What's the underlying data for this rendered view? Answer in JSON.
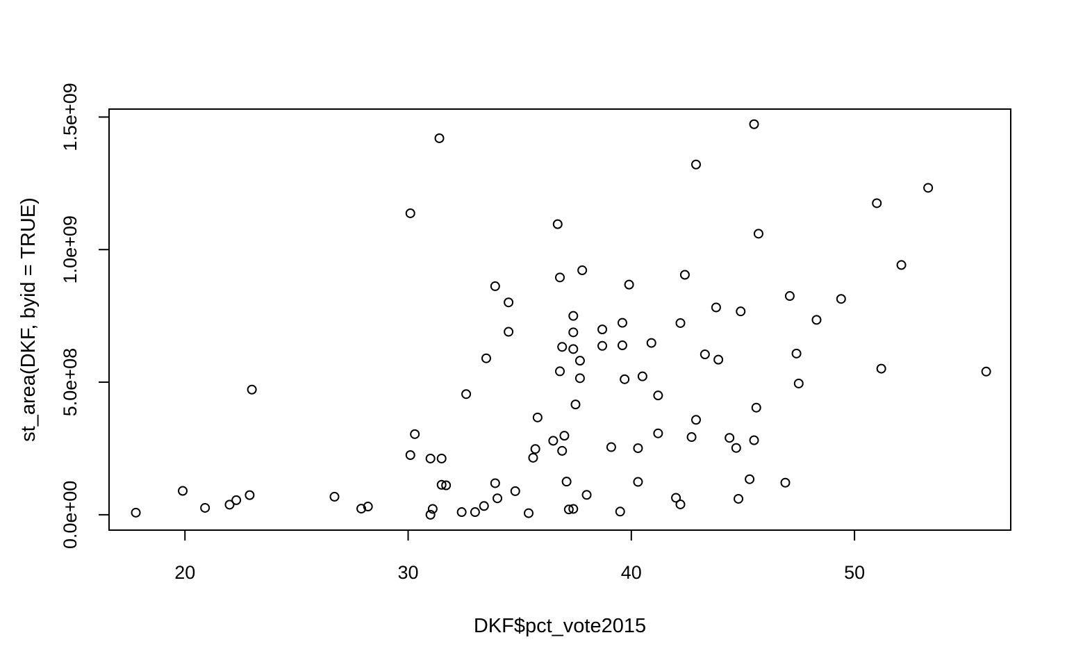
{
  "chart_data": {
    "type": "scatter",
    "xlabel": "DKF$pct_vote2015",
    "ylabel": "st_area(DKF, byid = TRUE)",
    "xlim": [
      16.6,
      57.0
    ],
    "ylim": [
      -58000000.0,
      1530000000.0
    ],
    "x_ticks": [
      {
        "value": 20,
        "label": "20"
      },
      {
        "value": 30,
        "label": "30"
      },
      {
        "value": 40,
        "label": "40"
      },
      {
        "value": 50,
        "label": "50"
      }
    ],
    "y_ticks": [
      {
        "value": 0,
        "label": "0.0e+00"
      },
      {
        "value": 500000000,
        "label": "5.0e+08"
      },
      {
        "value": 1000000000,
        "label": "1.0e+09"
      },
      {
        "value": 1500000000,
        "label": "1.5e+09"
      }
    ],
    "marker": "open-circle",
    "marker_color": "#000000",
    "grid": false,
    "legend": "none",
    "points": [
      [
        17.8,
        8000000
      ],
      [
        19.9,
        90000000
      ],
      [
        20.9,
        26000000
      ],
      [
        22.0,
        38000000
      ],
      [
        22.3,
        55000000
      ],
      [
        22.9,
        74000000
      ],
      [
        23.0,
        472000000
      ],
      [
        26.7,
        68000000
      ],
      [
        27.9,
        23000000
      ],
      [
        28.2,
        31000000
      ],
      [
        30.1,
        225000000
      ],
      [
        30.1,
        1137000000
      ],
      [
        30.3,
        304000000
      ],
      [
        31.0,
        0
      ],
      [
        31.1,
        22000000
      ],
      [
        31.0,
        212000000
      ],
      [
        31.5,
        212000000
      ],
      [
        31.5,
        113000000
      ],
      [
        31.7,
        111000000
      ],
      [
        31.4,
        1420000000
      ],
      [
        32.4,
        10000000
      ],
      [
        32.6,
        455000000
      ],
      [
        33.0,
        10000000
      ],
      [
        33.4,
        33000000
      ],
      [
        33.5,
        590000000
      ],
      [
        33.9,
        119000000
      ],
      [
        34.0,
        62000000
      ],
      [
        33.9,
        862000000
      ],
      [
        34.5,
        690000000
      ],
      [
        34.5,
        801000000
      ],
      [
        34.8,
        89000000
      ],
      [
        35.4,
        6000000
      ],
      [
        35.6,
        215000000
      ],
      [
        35.7,
        248000000
      ],
      [
        35.8,
        367000000
      ],
      [
        36.5,
        279000000
      ],
      [
        36.7,
        1096000000
      ],
      [
        36.8,
        895000000
      ],
      [
        36.8,
        541000000
      ],
      [
        36.9,
        633000000
      ],
      [
        36.9,
        241000000
      ],
      [
        37.0,
        298000000
      ],
      [
        37.1,
        125000000
      ],
      [
        37.2,
        20000000
      ],
      [
        37.4,
        22000000
      ],
      [
        37.4,
        750000000
      ],
      [
        37.4,
        688000000
      ],
      [
        37.4,
        625000000
      ],
      [
        37.5,
        416000000
      ],
      [
        37.7,
        581000000
      ],
      [
        37.7,
        515000000
      ],
      [
        37.8,
        922000000
      ],
      [
        38.0,
        75000000
      ],
      [
        38.7,
        699000000
      ],
      [
        38.7,
        637000000
      ],
      [
        39.1,
        255000000
      ],
      [
        39.5,
        12000000
      ],
      [
        39.6,
        724000000
      ],
      [
        39.6,
        639000000
      ],
      [
        39.7,
        511000000
      ],
      [
        39.9,
        868000000
      ],
      [
        40.3,
        124000000
      ],
      [
        40.3,
        251000000
      ],
      [
        40.5,
        522000000
      ],
      [
        40.9,
        648000000
      ],
      [
        41.2,
        450000000
      ],
      [
        41.2,
        307000000
      ],
      [
        42.0,
        64000000
      ],
      [
        42.2,
        723000000
      ],
      [
        42.2,
        39000000
      ],
      [
        42.4,
        905000000
      ],
      [
        42.7,
        293000000
      ],
      [
        42.9,
        1321000000
      ],
      [
        42.9,
        358000000
      ],
      [
        43.3,
        605000000
      ],
      [
        43.8,
        782000000
      ],
      [
        43.9,
        585000000
      ],
      [
        44.4,
        290000000
      ],
      [
        44.7,
        252000000
      ],
      [
        44.8,
        60000000
      ],
      [
        44.9,
        767000000
      ],
      [
        45.3,
        134000000
      ],
      [
        45.5,
        1473000000
      ],
      [
        45.5,
        281000000
      ],
      [
        45.6,
        404000000
      ],
      [
        45.7,
        1060000000
      ],
      [
        46.9,
        121000000
      ],
      [
        47.1,
        825000000
      ],
      [
        47.4,
        608000000
      ],
      [
        47.5,
        495000000
      ],
      [
        48.3,
        735000000
      ],
      [
        49.4,
        814000000
      ],
      [
        51.0,
        1175000000
      ],
      [
        51.2,
        551000000
      ],
      [
        52.1,
        942000000
      ],
      [
        53.3,
        1233000000
      ],
      [
        55.9,
        540000000
      ]
    ]
  }
}
